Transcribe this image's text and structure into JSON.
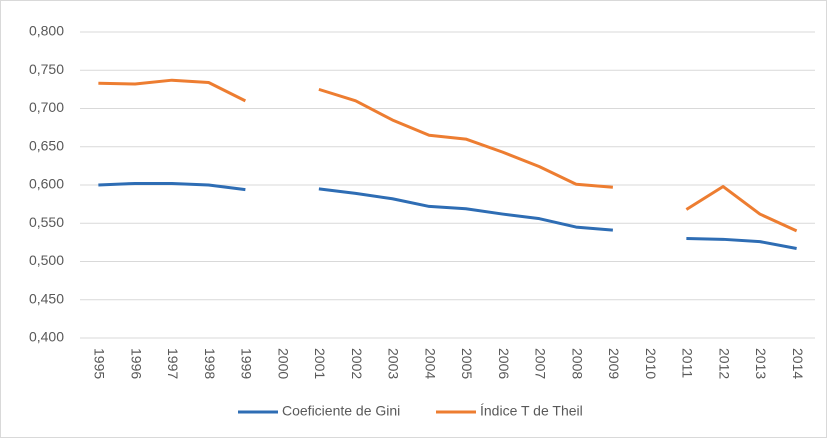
{
  "chart_data": {
    "type": "line",
    "categories": [
      "1995",
      "1996",
      "1997",
      "1998",
      "1999",
      "2000",
      "2001",
      "2002",
      "2003",
      "2004",
      "2005",
      "2006",
      "2007",
      "2008",
      "2009",
      "2010",
      "2011",
      "2012",
      "2013",
      "2014"
    ],
    "series": [
      {
        "name": "Coeficiente de Gini",
        "color": "#2e6db4",
        "values": [
          0.6,
          0.602,
          0.602,
          0.6,
          0.594,
          null,
          0.595,
          0.589,
          0.582,
          0.572,
          0.569,
          0.562,
          0.556,
          0.545,
          0.541,
          null,
          0.53,
          0.529,
          0.526,
          0.517
        ]
      },
      {
        "name": "Índice T de Theil",
        "color": "#ed7d31",
        "values": [
          0.733,
          0.732,
          0.737,
          0.734,
          0.71,
          null,
          0.725,
          0.71,
          0.685,
          0.665,
          0.66,
          0.643,
          0.624,
          0.601,
          0.597,
          null,
          0.568,
          0.598,
          0.562,
          0.54
        ]
      }
    ],
    "ylim": [
      0.4,
      0.8
    ],
    "yticks": [
      {
        "value": 0.4,
        "label": "0,400"
      },
      {
        "value": 0.45,
        "label": "0,450"
      },
      {
        "value": 0.5,
        "label": "0,500"
      },
      {
        "value": 0.55,
        "label": "0,550"
      },
      {
        "value": 0.6,
        "label": "0,600"
      },
      {
        "value": 0.65,
        "label": "0,650"
      },
      {
        "value": 0.7,
        "label": "0,700"
      },
      {
        "value": 0.75,
        "label": "0,750"
      },
      {
        "value": 0.8,
        "label": "0,800"
      }
    ],
    "grid": true,
    "legend": "bottom"
  }
}
